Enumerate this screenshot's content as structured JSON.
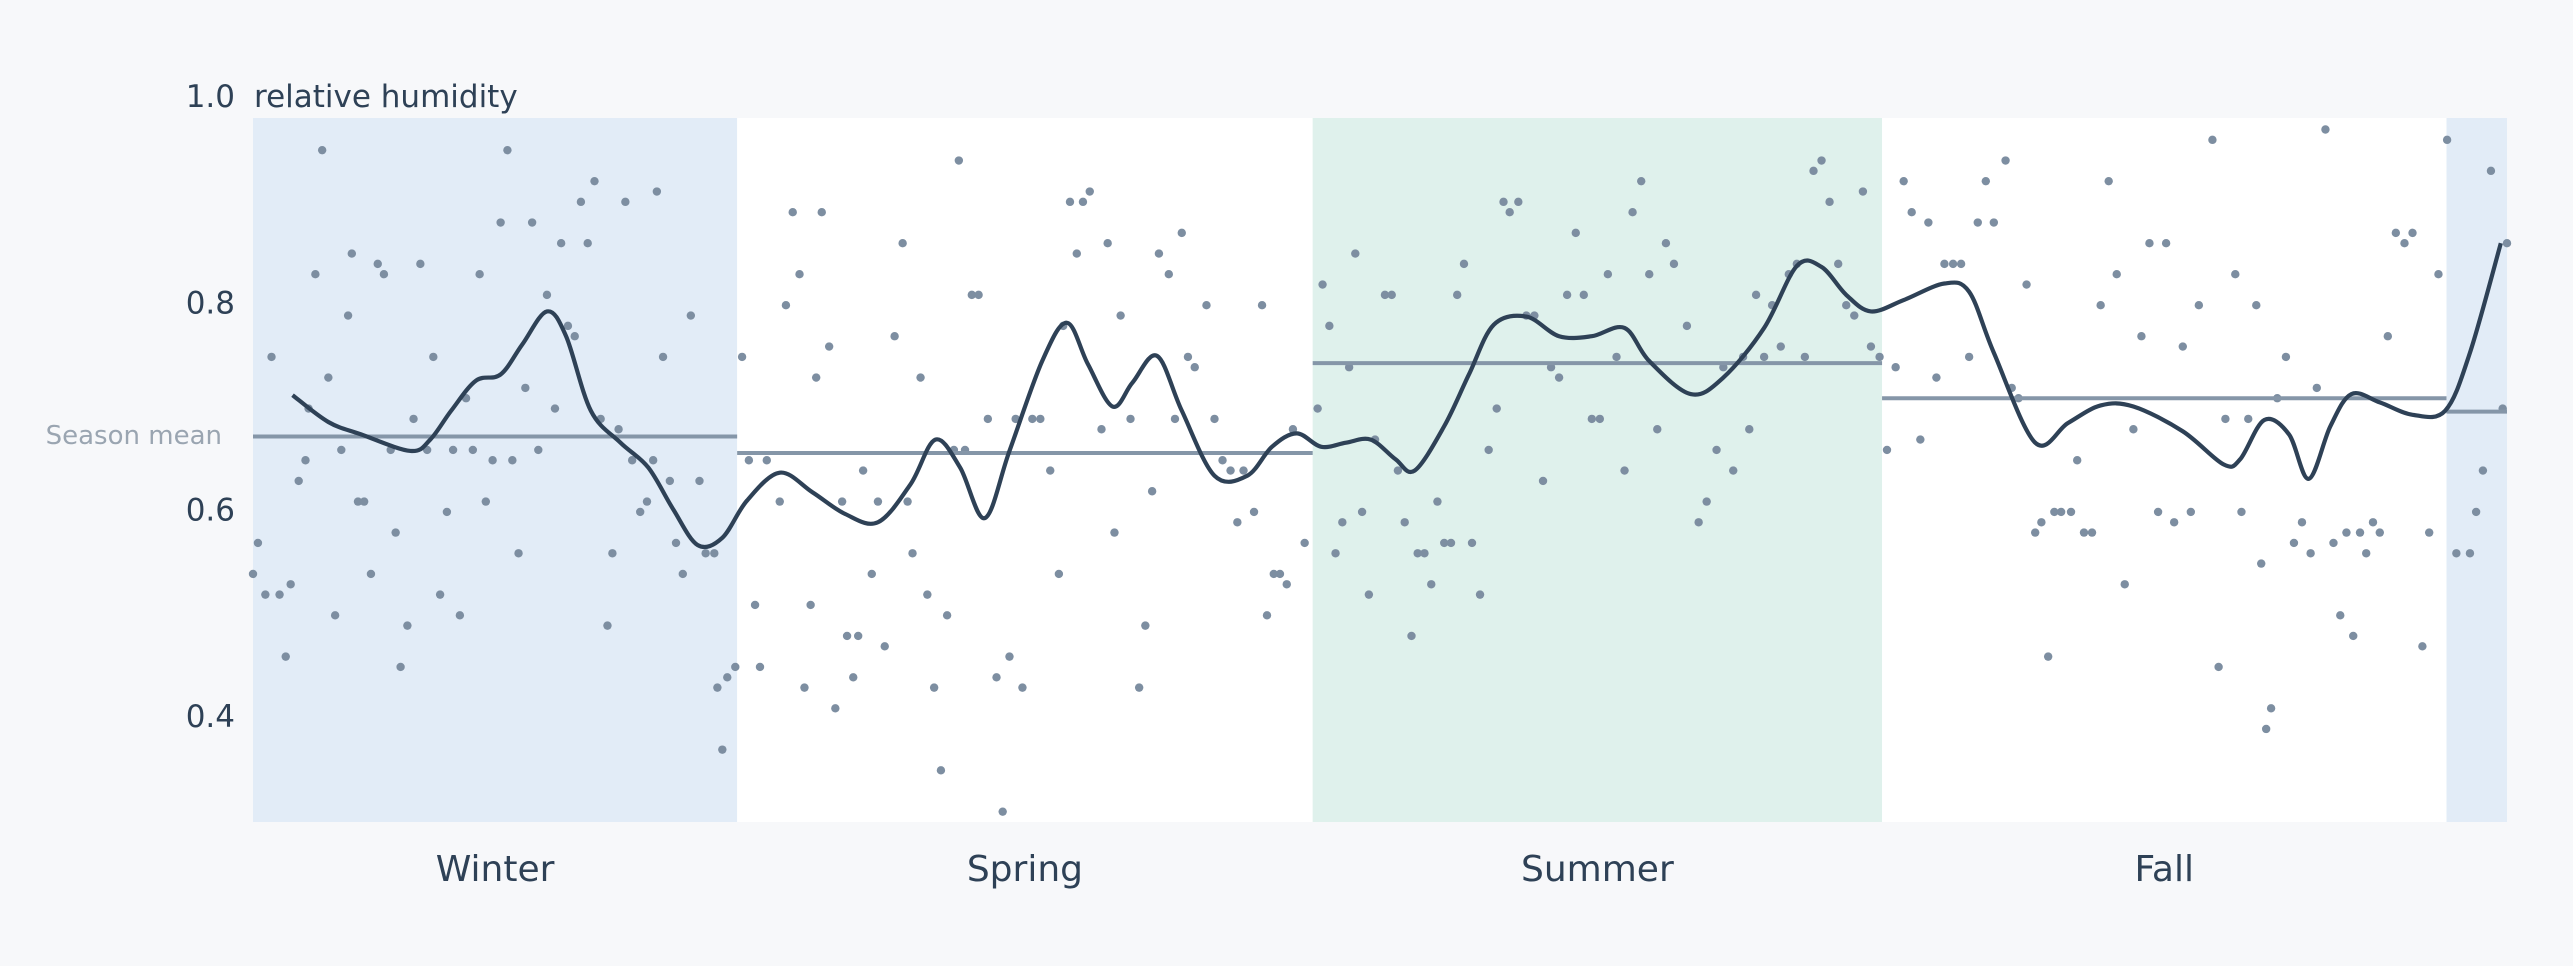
{
  "chart_data": {
    "type": "scatter",
    "y_label": "relative humidity",
    "mean_label": "Season mean",
    "xlim": [
      0,
      365
    ],
    "ylim": [
      0.3,
      1.0
    ],
    "yticks": [
      0.4,
      0.6,
      0.8,
      {
        "value": 1.0,
        "label": "1.0"
      }
    ],
    "grid": false,
    "point_color": "#7d8ea1",
    "trend_color": "#2e4156",
    "mean_color": "#8596a8",
    "seasons": [
      {
        "name": "Winter",
        "start": 0,
        "end": 78.4,
        "mean": 0.673,
        "color": "#e2ecf7"
      },
      {
        "name": "Spring",
        "start": 78.4,
        "end": 171.6,
        "mean": 0.657,
        "color": "#ffffff"
      },
      {
        "name": "Summer",
        "start": 171.6,
        "end": 263.8,
        "mean": 0.744,
        "color": "#dff1ec"
      },
      {
        "name": "Fall",
        "start": 263.8,
        "end": 355.2,
        "mean": 0.71,
        "color": "#ffffff"
      },
      {
        "name": null,
        "start": 355.2,
        "end": 365,
        "mean": 0.697,
        "color": "#e2ecf7"
      }
    ],
    "points": {
      "x": [
        0,
        0.8,
        2,
        3,
        4.3,
        5.3,
        6.1,
        7.4,
        8.5,
        9,
        10.1,
        11.2,
        12.2,
        13.3,
        14.3,
        15.4,
        16,
        17,
        18,
        19.1,
        20.2,
        21.2,
        22.3,
        23.1,
        23.9,
        25,
        26,
        27.1,
        28.2,
        29.2,
        30.3,
        31.4,
        32.4,
        33.5,
        34.5,
        35.6,
        36.7,
        37.7,
        38.8,
        40.1,
        41.2,
        42,
        43,
        44.1,
        45.2,
        46.2,
        47.6,
        48.9,
        49.9,
        51,
        52.1,
        53.1,
        54.2,
        55.3,
        56.3,
        57.4,
        58.2,
        59.2,
        60.3,
        61.4,
        62.7,
        63.8,
        64.8,
        65.4,
        66.4,
        67.5,
        68.5,
        69.6,
        70.9,
        72.3,
        73.3,
        74.7,
        75.2,
        76,
        76.8,
        78.1,
        79.2,
        80.3,
        81.3,
        82.1,
        83.2,
        85.3,
        86.3,
        87.4,
        88.5,
        89.3,
        90.3,
        91.2,
        92.1,
        93.3,
        94.3,
        95.4,
        96.2,
        97.2,
        98,
        98.8,
        100.2,
        101.2,
        102.3,
        103.9,
        105.2,
        106,
        106.8,
        108.1,
        109.2,
        110.3,
        111.4,
        112.4,
        113.5,
        114.3,
        115.3,
        116.4,
        117.5,
        119,
        120.4,
        121.4,
        122.5,
        123.5,
        124.6,
        126.2,
        127.5,
        129.1,
        130.5,
        131.2,
        132.3,
        133.4,
        134.4,
        135.5,
        137.4,
        138.4,
        139.5,
        140.5,
        142.1,
        143.5,
        144.5,
        145.6,
        146.7,
        148.3,
        149.3,
        150.4,
        151.4,
        152.5,
        154.4,
        155.7,
        157,
        158.3,
        159.4,
        160.4,
        162.1,
        163.4,
        164.2,
        165.3,
        166.3,
        167.4,
        168.4,
        170.3,
        172.4,
        173.2,
        174.3,
        175.3,
        176.4,
        177.5,
        178.5,
        179.6,
        180.7,
        181.7,
        183.3,
        184.4,
        185.4,
        186.5,
        187.6,
        188.6,
        189.7,
        190.8,
        191.8,
        192.9,
        194,
        195,
        196.1,
        197.4,
        198.7,
        200.1,
        201.4,
        202.5,
        203.5,
        204.9,
        206.2,
        207.5,
        208.9,
        210.2,
        211.5,
        212.8,
        214.2,
        215.5,
        216.8,
        218.1,
        219.4,
        220.8,
        222.1,
        223.4,
        224.8,
        226.1,
        227.4,
        228.8,
        230.1,
        232.2,
        234.1,
        235.4,
        237,
        238.1,
        239.7,
        241.3,
        242.3,
        243.4,
        244.7,
        246,
        247.4,
        248.7,
        250,
        251.3,
        252.7,
        254,
        255.3,
        256.7,
        258,
        259.3,
        260.7,
        262,
        263.4,
        264.6,
        266,
        267.3,
        268.6,
        270,
        271.3,
        272.6,
        273.9,
        275.3,
        276.6,
        277.9,
        279.3,
        280.6,
        281.9,
        283.8,
        284.8,
        285.9,
        287.2,
        288.6,
        289.6,
        290.7,
        291.7,
        292.8,
        294.4,
        295.4,
        296.5,
        297.8,
        299.2,
        300.5,
        301.8,
        303.1,
        304.5,
        305.8,
        307.1,
        308.5,
        309.8,
        311.1,
        312.5,
        313.8,
        315.1,
        317.3,
        318.3,
        319.4,
        321,
        322,
        323.1,
        324.4,
        325.2,
        326,
        326.8,
        327.8,
        329.2,
        330.5,
        331.8,
        333.2,
        334.2,
        335.6,
        336.9,
        338,
        339,
        340.1,
        341.2,
        342.2,
        343.3,
        344.4,
        345.7,
        347,
        348.4,
        349.7,
        351.3,
        352.4,
        353.9,
        355.3,
        356.8,
        359,
        360,
        361.1,
        362.4,
        364.3,
        365
      ],
      "y": [
        0.54,
        0.57,
        0.52,
        0.75,
        0.52,
        0.46,
        0.53,
        0.63,
        0.65,
        0.7,
        0.83,
        0.95,
        0.73,
        0.5,
        0.66,
        0.79,
        0.85,
        0.61,
        0.61,
        0.54,
        0.84,
        0.83,
        0.66,
        0.58,
        0.45,
        0.49,
        0.69,
        0.84,
        0.66,
        0.75,
        0.52,
        0.6,
        0.66,
        0.5,
        0.71,
        0.66,
        0.83,
        0.61,
        0.65,
        0.88,
        0.95,
        0.65,
        0.56,
        0.72,
        0.88,
        0.66,
        0.81,
        0.7,
        0.86,
        0.78,
        0.77,
        0.9,
        0.86,
        0.92,
        0.69,
        0.49,
        0.56,
        0.68,
        0.9,
        0.65,
        0.6,
        0.61,
        0.65,
        0.91,
        0.75,
        0.63,
        0.57,
        0.54,
        0.79,
        0.63,
        0.56,
        0.56,
        0.43,
        0.37,
        0.44,
        0.45,
        0.75,
        0.65,
        0.51,
        0.45,
        0.65,
        0.61,
        0.8,
        0.89,
        0.83,
        0.43,
        0.51,
        0.73,
        0.89,
        0.76,
        0.41,
        0.61,
        0.48,
        0.44,
        0.48,
        0.64,
        0.54,
        0.61,
        0.47,
        0.77,
        0.86,
        0.61,
        0.56,
        0.73,
        0.52,
        0.43,
        0.35,
        0.5,
        0.66,
        0.94,
        0.66,
        0.81,
        0.81,
        0.69,
        0.44,
        0.31,
        0.46,
        0.69,
        0.43,
        0.69,
        0.69,
        0.64,
        0.54,
        0.78,
        0.9,
        0.85,
        0.9,
        0.91,
        0.68,
        0.86,
        0.58,
        0.79,
        0.69,
        0.43,
        0.49,
        0.62,
        0.85,
        0.83,
        0.69,
        0.87,
        0.75,
        0.74,
        0.8,
        0.69,
        0.65,
        0.64,
        0.59,
        0.64,
        0.6,
        0.8,
        0.5,
        0.54,
        0.54,
        0.53,
        0.68,
        0.57,
        0.7,
        0.82,
        0.78,
        0.56,
        0.59,
        0.74,
        0.85,
        0.6,
        0.52,
        0.67,
        0.81,
        0.81,
        0.64,
        0.59,
        0.48,
        0.56,
        0.56,
        0.53,
        0.61,
        0.57,
        0.57,
        0.81,
        0.84,
        0.57,
        0.52,
        0.66,
        0.7,
        0.9,
        0.89,
        0.9,
        0.79,
        0.79,
        0.63,
        0.74,
        0.73,
        0.81,
        0.87,
        0.81,
        0.69,
        0.69,
        0.83,
        0.75,
        0.64,
        0.89,
        0.92,
        0.83,
        0.68,
        0.86,
        0.84,
        0.78,
        0.59,
        0.61,
        0.66,
        0.74,
        0.64,
        0.75,
        0.68,
        0.81,
        0.75,
        0.8,
        0.76,
        0.83,
        0.84,
        0.75,
        0.93,
        0.94,
        0.9,
        0.84,
        0.8,
        0.79,
        0.91,
        0.76,
        0.75,
        0.66,
        0.74,
        0.92,
        0.89,
        0.67,
        0.88,
        0.73,
        0.84,
        0.84,
        0.84,
        0.75,
        0.88,
        0.92,
        0.88,
        0.94,
        0.72,
        0.71,
        0.82,
        0.58,
        0.59,
        0.46,
        0.6,
        0.6,
        0.6,
        0.65,
        0.58,
        0.58,
        0.8,
        0.92,
        0.83,
        0.53,
        0.68,
        0.77,
        0.86,
        0.6,
        0.86,
        0.59,
        0.76,
        0.6,
        0.8,
        0.96,
        0.45,
        0.69,
        0.83,
        0.6,
        0.69,
        0.8,
        0.55,
        0.39,
        0.41,
        0.71,
        0.75,
        0.57,
        0.59,
        0.56,
        0.72,
        0.97,
        0.57,
        0.5,
        0.58,
        0.48,
        0.58,
        0.56,
        0.59,
        0.58,
        0.77,
        0.87,
        0.86,
        0.87,
        0.47,
        0.58,
        0.83,
        0.96,
        0.56,
        0.56,
        0.6,
        0.64,
        0.93,
        0.7,
        0.86
      ]
    },
    "trend": {
      "x": [
        6.4,
        12.2,
        17.5,
        25.5,
        28.7,
        32.1,
        36.1,
        40.1,
        43.6,
        47.6,
        50.7,
        54.7,
        59.5,
        64,
        68,
        72,
        76,
        80,
        85.3,
        90.6,
        95.9,
        101.2,
        106.5,
        110.5,
        114.5,
        118.5,
        122.5,
        127.8,
        131.8,
        135.2,
        139.2,
        142.4,
        146.4,
        150.4,
        155.7,
        161,
        165,
        169,
        173,
        177,
        181,
        185,
        188.1,
        192.9,
        196.9,
        200.9,
        206.2,
        211.5,
        216.8,
        222.1,
        226.1,
        232.8,
        238.1,
        244.7,
        250,
        254,
        258,
        262,
        267.3,
        273.9,
        277.9,
        281.9,
        288.6,
        293.9,
        299.2,
        304.5,
        312.5,
        319.1,
        321.8,
        325.7,
        329.7,
        332.9,
        336.4,
        339.8,
        344.4,
        349.7,
        355,
        359,
        364
      ],
      "values": [
        0.713,
        0.687,
        0.675,
        0.659,
        0.67,
        0.698,
        0.727,
        0.733,
        0.762,
        0.794,
        0.77,
        0.698,
        0.667,
        0.643,
        0.603,
        0.568,
        0.575,
        0.611,
        0.638,
        0.619,
        0.598,
        0.59,
        0.627,
        0.67,
        0.643,
        0.594,
        0.659,
        0.746,
        0.783,
        0.743,
        0.702,
        0.725,
        0.751,
        0.698,
        0.635,
        0.635,
        0.663,
        0.676,
        0.663,
        0.667,
        0.67,
        0.651,
        0.64,
        0.683,
        0.733,
        0.781,
        0.789,
        0.77,
        0.77,
        0.778,
        0.746,
        0.714,
        0.73,
        0.778,
        0.838,
        0.837,
        0.81,
        0.794,
        0.805,
        0.821,
        0.813,
        0.754,
        0.667,
        0.686,
        0.703,
        0.702,
        0.678,
        0.646,
        0.651,
        0.689,
        0.675,
        0.632,
        0.683,
        0.714,
        0.706,
        0.694,
        0.698,
        0.754,
        0.86
      ]
    }
  }
}
